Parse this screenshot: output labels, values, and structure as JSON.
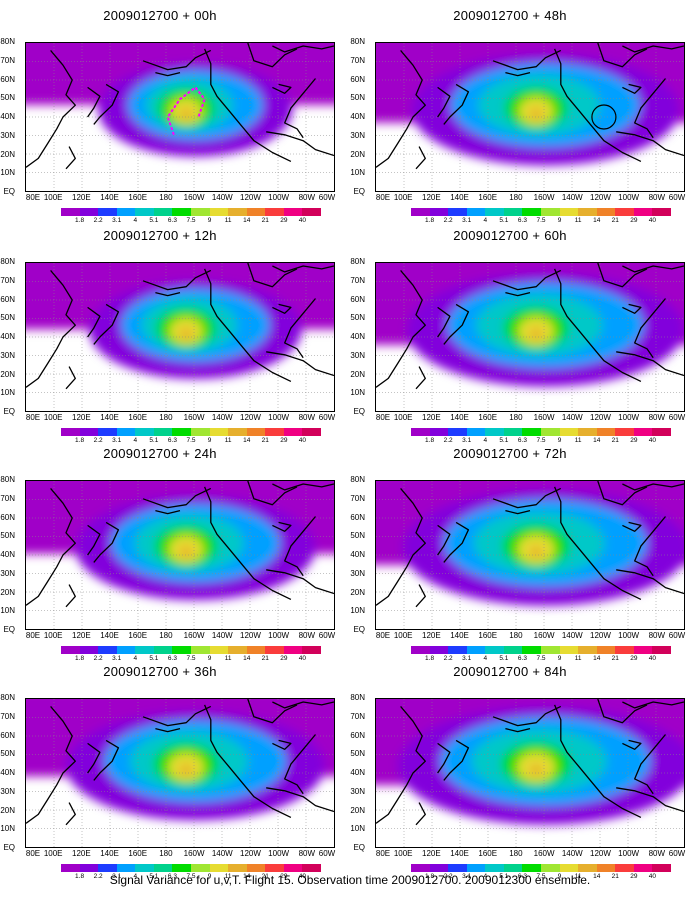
{
  "caption": "Signal Variance for u,v,T. Flight 15. Observation time 2009012700. 2009012300 ensemble.",
  "panels": [
    {
      "title": "2009012700 + 00h",
      "col": 0,
      "row": 0,
      "intensity": 0.55,
      "spread": 0.45,
      "marker": "path"
    },
    {
      "title": "2009012700 + 12h",
      "col": 0,
      "row": 1,
      "intensity": 0.6,
      "spread": 0.55,
      "marker": "none"
    },
    {
      "title": "2009012700 + 24h",
      "col": 0,
      "row": 2,
      "intensity": 0.65,
      "spread": 0.7,
      "marker": "none"
    },
    {
      "title": "2009012700 + 36h",
      "col": 0,
      "row": 3,
      "intensity": 0.7,
      "spread": 0.8,
      "marker": "none"
    },
    {
      "title": "2009012700 + 48h",
      "col": 1,
      "row": 0,
      "intensity": 0.65,
      "spread": 0.85,
      "marker": "circle"
    },
    {
      "title": "2009012700 + 60h",
      "col": 1,
      "row": 1,
      "intensity": 0.7,
      "spread": 0.9,
      "marker": "none"
    },
    {
      "title": "2009012700 + 72h",
      "col": 1,
      "row": 2,
      "intensity": 0.75,
      "spread": 0.95,
      "marker": "none"
    },
    {
      "title": "2009012700 + 84h",
      "col": 1,
      "row": 3,
      "intensity": 0.8,
      "spread": 1.0,
      "marker": "none"
    }
  ],
  "x_ticks": [
    "80E",
    "100E",
    "120E",
    "140E",
    "160E",
    "180",
    "160W",
    "140W",
    "120W",
    "100W",
    "80W",
    "60W"
  ],
  "y_ticks": [
    "80N",
    "70N",
    "60N",
    "50N",
    "40N",
    "30N",
    "20N",
    "10N",
    "EQ"
  ],
  "colorbar": {
    "labels": [
      "1.8",
      "2.2",
      "3.1",
      "4",
      "5.1",
      "6.3",
      "7.5",
      "9",
      "11",
      "14",
      "21",
      "29",
      "40"
    ],
    "colors": [
      "#a000c8",
      "#8200dc",
      "#1e3cff",
      "#00a0ff",
      "#00c8c8",
      "#00d28c",
      "#00dc00",
      "#a0e632",
      "#e6dc32",
      "#e6af2d",
      "#f08228",
      "#fa3c3c",
      "#f00082"
    ]
  }
}
